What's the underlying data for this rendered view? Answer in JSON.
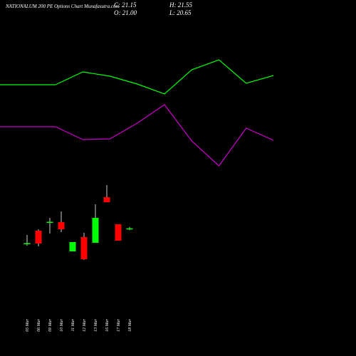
{
  "header": {
    "title": "NATIONALUM 200  PE Options  Chart Munafasutra.com",
    "c_label": "C: 21.15",
    "o_label": "O: 21.00",
    "h_label": "H: 21.55",
    "l_label": "L: 20.65"
  },
  "chart_data": {
    "type": "candlestick",
    "categories": [
      "05 Mar",
      "06 Mar",
      "09 Mar",
      "10 Mar",
      "11 Mar",
      "12 Mar",
      "13 Mar",
      "16 Mar",
      "17 Mar",
      "18 Mar"
    ],
    "open": [
      16.8,
      20.5,
      22.9,
      22.9,
      14.7,
      18.7,
      17.1,
      29.9,
      22.3,
      21.0
    ],
    "high": [
      19.3,
      20.9,
      24.1,
      25.9,
      17.3,
      19.9,
      27.9,
      33.3,
      22.3,
      21.55
    ],
    "low": [
      16.3,
      16.1,
      19.7,
      20.1,
      14.7,
      12.3,
      17.1,
      28.5,
      17.7,
      20.65
    ],
    "close": [
      17.0,
      16.9,
      23.0,
      20.9,
      17.3,
      12.5,
      24.1,
      28.5,
      17.7,
      21.15
    ],
    "up_color": "#00ff00",
    "down_color": "#ff0000",
    "lines": [
      {
        "color": "#00ff00",
        "values": [
          61.5,
          65.1,
          63.9,
          61.7,
          58.9,
          65.7,
          68.5,
          61.9,
          64.1
        ]
      },
      {
        "color": "#cc00cc",
        "values": [
          49.7,
          46.1,
          46.3,
          50.7,
          55.9,
          45.7,
          38.7,
          49.3,
          45.9
        ]
      }
    ],
    "ylim": [
      -14.7,
      85.3
    ]
  }
}
